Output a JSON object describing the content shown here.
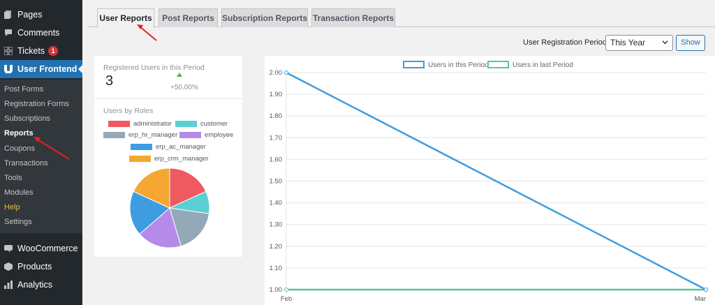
{
  "sidebar": {
    "items": [
      {
        "label": "Pages",
        "icon": "pages-icon"
      },
      {
        "label": "Comments",
        "icon": "comments-icon"
      },
      {
        "label": "Tickets",
        "icon": "tickets-icon",
        "badge": "1"
      },
      {
        "label": "User Frontend",
        "icon": "user-frontend-icon"
      },
      {
        "label": "WooCommerce",
        "icon": "woocommerce-icon"
      },
      {
        "label": "Products",
        "icon": "products-icon"
      },
      {
        "label": "Analytics",
        "icon": "analytics-icon"
      }
    ],
    "submenu": [
      {
        "label": "Post Forms"
      },
      {
        "label": "Registration Forms"
      },
      {
        "label": "Subscriptions"
      },
      {
        "label": "Reports"
      },
      {
        "label": "Coupons"
      },
      {
        "label": "Transactions"
      },
      {
        "label": "Tools"
      },
      {
        "label": "Modules"
      },
      {
        "label": "Help"
      },
      {
        "label": "Settings"
      }
    ],
    "current_submenu": "Reports"
  },
  "tabs": [
    {
      "label": "User Reports",
      "active": true
    },
    {
      "label": "Post Reports",
      "active": false
    },
    {
      "label": "Subscription Reports",
      "active": false
    },
    {
      "label": "Transaction Reports",
      "active": false
    }
  ],
  "filter": {
    "label": "User Registration Period:",
    "selected": "This Year",
    "button": "Show"
  },
  "stats": {
    "registered_label": "Registered Users in this Period",
    "registered_count": "3",
    "change": "+50.00%",
    "roles_label": "Users by Roles"
  },
  "roles_chart": {
    "type": "pie",
    "legend": [
      {
        "name": "administrator",
        "color": "#ee5a5f"
      },
      {
        "name": "customer",
        "color": "#5bd0d3"
      },
      {
        "name": "erp_hr_manager",
        "color": "#94a9b8"
      },
      {
        "name": "employee",
        "color": "#b68ae9"
      },
      {
        "name": "erp_ac_manager",
        "color": "#3d9de0"
      },
      {
        "name": "erp_crm_manager",
        "color": "#f6a731"
      }
    ],
    "values": [
      1,
      0.5,
      1,
      1,
      1,
      1
    ]
  },
  "chart_data": {
    "type": "line",
    "categories": [
      "Feb",
      "Mar"
    ],
    "series": [
      {
        "name": "Users in this Period",
        "values": [
          2.0,
          1.0
        ],
        "color": "#3d9de0"
      },
      {
        "name": "Users in last Period",
        "values": [
          1.0,
          1.0
        ],
        "color": "#5cc49f"
      }
    ],
    "ylim": [
      1.0,
      2.0
    ],
    "yticks": [
      "2.00",
      "1.90",
      "1.80",
      "1.70",
      "1.60",
      "1.50",
      "1.40",
      "1.30",
      "1.20",
      "1.10",
      "1.00"
    ],
    "grid": true,
    "legend_position": "top"
  },
  "colors": {
    "sidebar": "#23282d",
    "submenu": "#32373c",
    "accent": "#2271b1",
    "arrow": "#e0241d"
  }
}
